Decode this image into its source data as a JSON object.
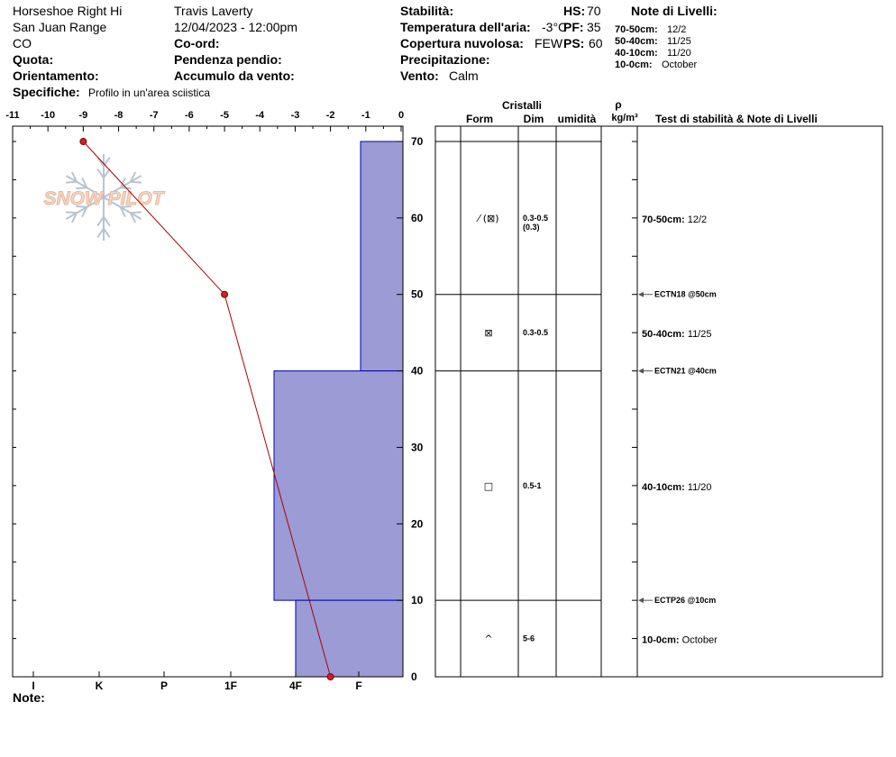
{
  "header": {
    "location": "Horseshoe Right Hi",
    "range": "San Juan Range",
    "state": "CO",
    "elevation_label": "Quota:",
    "aspect_label": "Orientamento:",
    "specifics_label": "Specifiche:",
    "specifics_value": "Profilo in un'area sciistica",
    "observer": "Travis Laverty",
    "datetime": "12/04/2023 - 12:00pm",
    "coord_label": "Co-ord:",
    "slope_label": "Pendenza pendio:",
    "wind_loading_label": "Accumulo da vento:",
    "stability_label": "Stabilità:",
    "air_temp_label": "Temperatura dell'aria:",
    "air_temp_value": "-3°C",
    "sky_label": "Copertura nuvolosa:",
    "sky_value": "FEW",
    "precip_label": "Precipitazione:",
    "wind_label": "Vento:",
    "wind_value": "Calm",
    "hs_label": "HS:",
    "hs_value": "70",
    "pf_label": "PF:",
    "pf_value": "35",
    "ps_label": "PS:",
    "ps_value": "60",
    "layer_notes_title": "Note di Livelli:",
    "layer_notes": [
      {
        "range": "70-50cm:",
        "date": "12/2"
      },
      {
        "range": "50-40cm:",
        "date": "11/25"
      },
      {
        "range": "40-10cm:",
        "date": "11/20"
      },
      {
        "range": "10-0cm:",
        "date": "October"
      }
    ]
  },
  "footer": {
    "note_label": "Note:"
  },
  "watermark": "SNOW PILOT",
  "colors": {
    "hardness_fill": "#9b9bd6",
    "hardness_edge": "#0000aa",
    "temp_line": "#aa0000"
  },
  "chart_data": {
    "type": "snow_profile",
    "temperature_axis": {
      "ticks": [
        "-11",
        "-10",
        "-9",
        "-8",
        "-7",
        "-6",
        "-5",
        "-4",
        "-3",
        "-2",
        "-1",
        "0"
      ],
      "range": [
        -11,
        0
      ]
    },
    "hardness_axis": {
      "ticks": [
        "I",
        "K",
        "P",
        "1F",
        "4F",
        "F"
      ]
    },
    "height_axis": {
      "ticks": [
        "0",
        "10",
        "20",
        "30",
        "40",
        "50",
        "60",
        "70"
      ],
      "range": [
        0,
        70
      ]
    },
    "temperature_profile": [
      {
        "height": 70,
        "temp": -9
      },
      {
        "height": 50,
        "temp": -5
      },
      {
        "height": 0,
        "temp": -2
      }
    ],
    "hardness_layers": [
      {
        "top": 70,
        "bottom": 40,
        "hardness": "F+"
      },
      {
        "top": 40,
        "bottom": 10,
        "hardness": "4F+"
      },
      {
        "top": 10,
        "bottom": 0,
        "hardness": "4F"
      }
    ],
    "table_headers": {
      "crystals": "Cristalli",
      "form": "Form",
      "size": "Dim",
      "moisture": "umidità",
      "rho": "ρ",
      "density_unit": "kg/m³",
      "notes": "Test di stabilità & Note di Livelli"
    },
    "crystal_layers": [
      {
        "height": 60,
        "form": "⁄ (⊠)",
        "size": "0.3-0.5",
        "size2": "(0.3)",
        "note_range": "70-50cm:",
        "note_date": "12/2"
      },
      {
        "height": 45,
        "form": "⊠",
        "size": "0.3-0.5",
        "size2": "",
        "note_range": "50-40cm:",
        "note_date": "11/25"
      },
      {
        "height": 25,
        "form": "□",
        "size": "0.5-1",
        "size2": "",
        "note_range": "40-10cm:",
        "note_date": "11/20"
      },
      {
        "height": 5,
        "form": "^",
        "size": "5-6",
        "size2": "",
        "note_range": "10-0cm:",
        "note_date": "October"
      }
    ],
    "stability_tests": [
      {
        "height": 50,
        "label": "ECTN18 @50cm"
      },
      {
        "height": 40,
        "label": "ECTN21 @40cm"
      },
      {
        "height": 10,
        "label": "ECTP26 @10cm"
      }
    ]
  }
}
